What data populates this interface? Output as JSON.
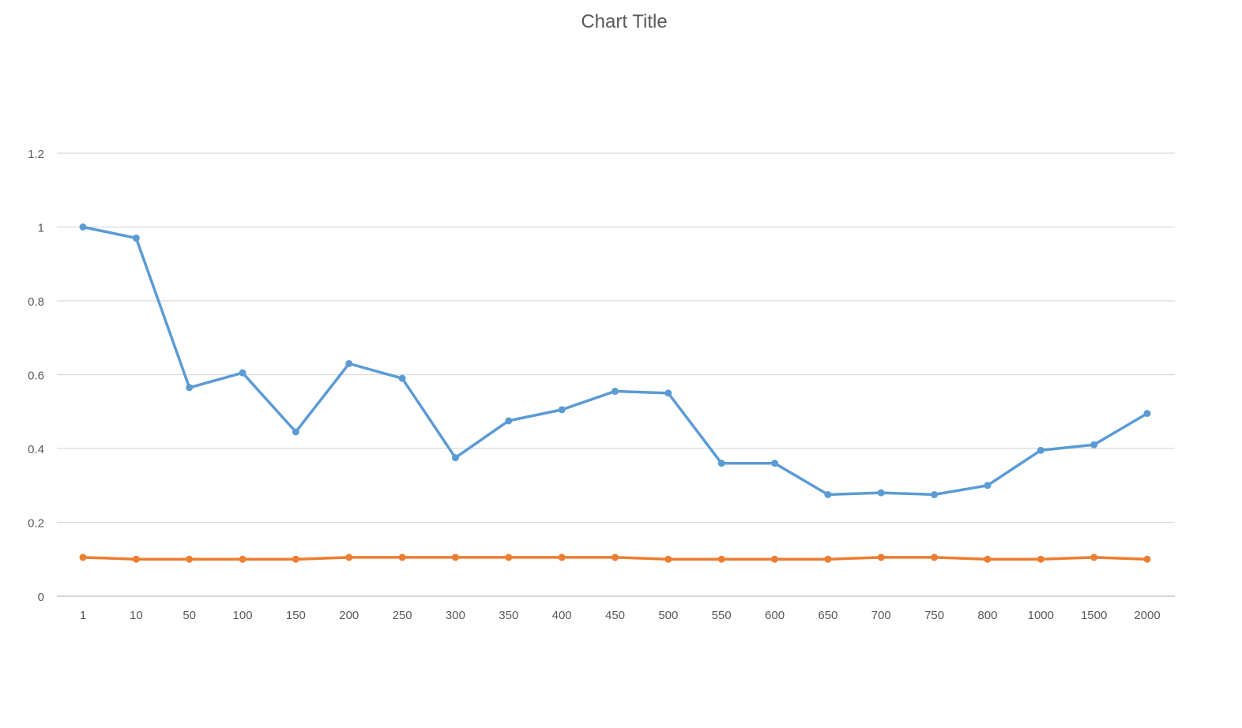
{
  "chart_data": {
    "type": "line",
    "title": "Chart Title",
    "xlabel": "",
    "ylabel": "",
    "categories": [
      "1",
      "10",
      "50",
      "100",
      "150",
      "200",
      "250",
      "300",
      "350",
      "400",
      "450",
      "500",
      "550",
      "600",
      "650",
      "700",
      "750",
      "800",
      "1000",
      "1500",
      "2000"
    ],
    "y_ticks": [
      "0",
      "0.2",
      "0.4",
      "0.6",
      "0.8",
      "1",
      "1.2"
    ],
    "ylim": [
      0,
      1.2
    ],
    "grid": true,
    "legend": "none",
    "series": [
      {
        "color": "#5b9bd5",
        "values": [
          1.0,
          0.97,
          0.565,
          0.605,
          0.445,
          0.63,
          0.59,
          0.375,
          0.475,
          0.505,
          0.555,
          0.55,
          0.36,
          0.36,
          0.275,
          0.28,
          0.275,
          0.3,
          0.395,
          0.41,
          0.495
        ]
      },
      {
        "color": "#ed7d31",
        "values": [
          0.105,
          0.1,
          0.1,
          0.1,
          0.1,
          0.105,
          0.105,
          0.105,
          0.105,
          0.105,
          0.105,
          0.1,
          0.1,
          0.1,
          0.1,
          0.105,
          0.105,
          0.1,
          0.1,
          0.105,
          0.1
        ]
      }
    ]
  }
}
